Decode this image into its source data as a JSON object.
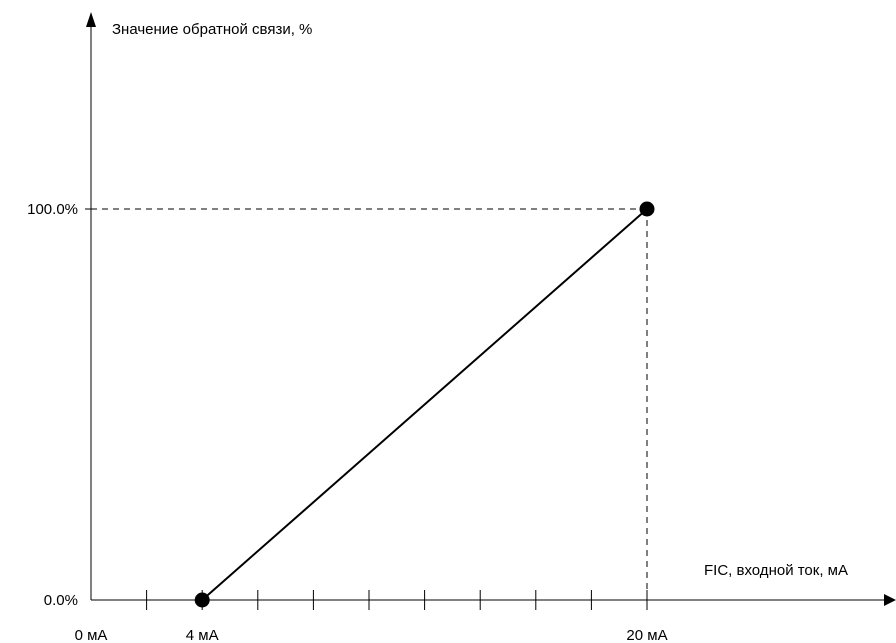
{
  "chart_data": {
    "type": "line",
    "title": "",
    "xlabel": "FIC, входной ток, мА",
    "ylabel": "Значение обратной связи, %",
    "x_unit": "мА",
    "xlim": [
      0,
      22.3
    ],
    "ylim": [
      0,
      100
    ],
    "x_tick_labels": [
      {
        "value": 0,
        "label": "0 мА"
      },
      {
        "value": 4,
        "label": "4 мА"
      },
      {
        "value": 20,
        "label": "20 мА"
      }
    ],
    "x_minor_ticks": [
      2,
      4,
      6,
      8,
      10,
      12,
      14,
      16,
      18,
      20
    ],
    "y_tick_labels": [
      {
        "value": 0,
        "label": "0.0%"
      },
      {
        "value": 100,
        "label": "100.0%"
      }
    ],
    "series": [
      {
        "x": [
          4,
          20
        ],
        "y": [
          0,
          100
        ]
      }
    ],
    "grid": false,
    "line_color": "#000000"
  }
}
